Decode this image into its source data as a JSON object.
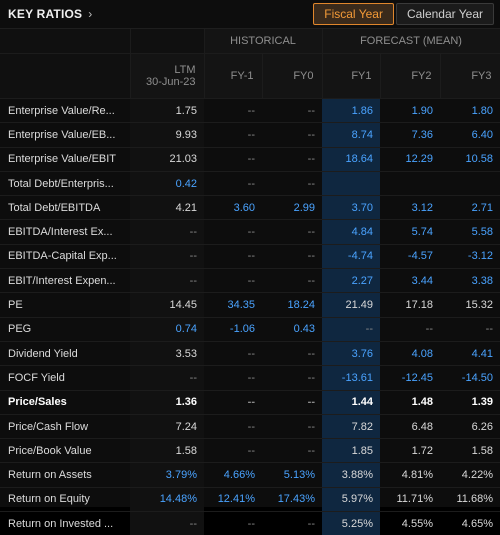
{
  "header": {
    "title": "KEY RATIOS",
    "toggle": {
      "fiscal": "Fiscal Year",
      "calendar": "Calendar Year"
    }
  },
  "groups": {
    "historical": "HISTORICAL",
    "forecast": "FORECAST (MEAN)"
  },
  "columns": {
    "ltm_line1": "LTM",
    "ltm_line2": "30-Jun-23",
    "fy_minus1": "FY-1",
    "fy0": "FY0",
    "fy1": "FY1",
    "fy2": "FY2",
    "fy3": "FY3"
  },
  "accent": "#f39a38",
  "positive_blue": "#4aa3ff",
  "rows": [
    {
      "label": "Enterprise Value/Re...",
      "bold": false,
      "values": [
        "1.75",
        "--",
        "--",
        "1.86",
        "1.90",
        "1.80"
      ],
      "blue": [
        false,
        false,
        false,
        true,
        true,
        true
      ]
    },
    {
      "label": "Enterprise Value/EB...",
      "bold": false,
      "values": [
        "9.93",
        "--",
        "--",
        "8.74",
        "7.36",
        "6.40"
      ],
      "blue": [
        false,
        false,
        false,
        true,
        true,
        true
      ]
    },
    {
      "label": "Enterprise Value/EBIT",
      "bold": false,
      "values": [
        "21.03",
        "--",
        "--",
        "18.64",
        "12.29",
        "10.58"
      ],
      "blue": [
        false,
        false,
        false,
        true,
        true,
        true
      ]
    },
    {
      "label": "Total Debt/Enterpris...",
      "bold": false,
      "values": [
        "0.42",
        "--",
        "--",
        "",
        "",
        ""
      ],
      "blue": [
        true,
        false,
        false,
        false,
        false,
        false
      ]
    },
    {
      "label": "Total Debt/EBITDA",
      "bold": false,
      "values": [
        "4.21",
        "3.60",
        "2.99",
        "3.70",
        "3.12",
        "2.71"
      ],
      "blue": [
        false,
        true,
        true,
        true,
        true,
        true
      ]
    },
    {
      "label": "EBITDA/Interest Ex...",
      "bold": false,
      "values": [
        "--",
        "--",
        "--",
        "4.84",
        "5.74",
        "5.58"
      ],
      "blue": [
        false,
        false,
        false,
        true,
        true,
        true
      ]
    },
    {
      "label": "EBITDA-Capital Exp...",
      "bold": false,
      "values": [
        "--",
        "--",
        "--",
        "-4.74",
        "-4.57",
        "-3.12"
      ],
      "blue": [
        false,
        false,
        false,
        true,
        true,
        true
      ]
    },
    {
      "label": "EBIT/Interest Expen...",
      "bold": false,
      "values": [
        "--",
        "--",
        "--",
        "2.27",
        "3.44",
        "3.38"
      ],
      "blue": [
        false,
        false,
        false,
        true,
        true,
        true
      ]
    },
    {
      "label": "PE",
      "bold": false,
      "values": [
        "14.45",
        "34.35",
        "18.24",
        "21.49",
        "17.18",
        "15.32"
      ],
      "blue": [
        false,
        true,
        true,
        false,
        false,
        false
      ]
    },
    {
      "label": "PEG",
      "bold": false,
      "values": [
        "0.74",
        "-1.06",
        "0.43",
        "--",
        "--",
        "--"
      ],
      "blue": [
        true,
        true,
        true,
        false,
        false,
        false
      ]
    },
    {
      "label": "Dividend Yield",
      "bold": false,
      "values": [
        "3.53",
        "--",
        "--",
        "3.76",
        "4.08",
        "4.41"
      ],
      "blue": [
        false,
        false,
        false,
        true,
        true,
        true
      ]
    },
    {
      "label": "FOCF Yield",
      "bold": false,
      "values": [
        "--",
        "--",
        "--",
        "-13.61",
        "-12.45",
        "-14.50"
      ],
      "blue": [
        false,
        false,
        false,
        true,
        true,
        true
      ]
    },
    {
      "label": "Price/Sales",
      "bold": true,
      "values": [
        "1.36",
        "--",
        "--",
        "1.44",
        "1.48",
        "1.39"
      ],
      "blue": [
        false,
        false,
        false,
        false,
        false,
        false
      ]
    },
    {
      "label": "Price/Cash Flow",
      "bold": false,
      "values": [
        "7.24",
        "--",
        "--",
        "7.82",
        "6.48",
        "6.26"
      ],
      "blue": [
        false,
        false,
        false,
        false,
        false,
        false
      ]
    },
    {
      "label": "Price/Book Value",
      "bold": false,
      "values": [
        "1.58",
        "--",
        "--",
        "1.85",
        "1.72",
        "1.58"
      ],
      "blue": [
        false,
        false,
        false,
        false,
        false,
        false
      ]
    },
    {
      "label": "Return on Assets",
      "bold": false,
      "values": [
        "3.79%",
        "4.66%",
        "5.13%",
        "3.88%",
        "4.81%",
        "4.22%"
      ],
      "blue": [
        true,
        true,
        true,
        false,
        false,
        false
      ]
    },
    {
      "label": "Return on Equity",
      "bold": false,
      "values": [
        "14.48%",
        "12.41%",
        "17.43%",
        "5.97%",
        "11.71%",
        "11.68%"
      ],
      "blue": [
        true,
        true,
        true,
        false,
        false,
        false
      ]
    },
    {
      "label": "Return on Invested ...",
      "bold": false,
      "values": [
        "--",
        "--",
        "--",
        "5.25%",
        "4.55%",
        "4.65%"
      ],
      "blue": [
        false,
        false,
        false,
        false,
        false,
        false
      ]
    }
  ]
}
